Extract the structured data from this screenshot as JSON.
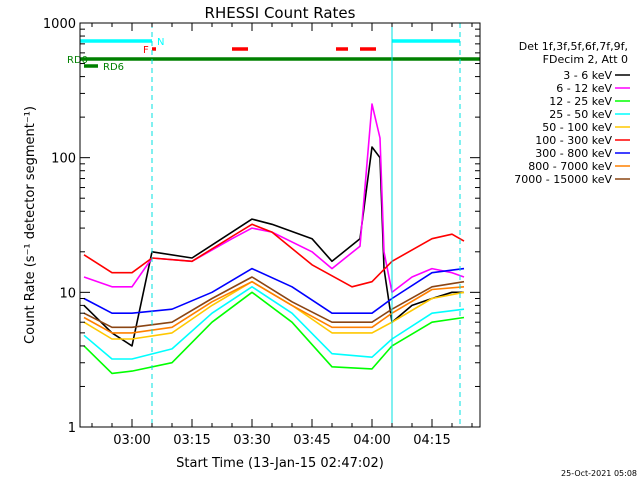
{
  "chart_data": {
    "type": "line",
    "title": "RHESSI Count Rates",
    "xlabel": "Start Time (13-Jan-15 02:47:02)",
    "ylabel": "Count Rate (s⁻¹ detector segment⁻¹)",
    "yscale": "log",
    "ylim": [
      1,
      1000
    ],
    "xlim": [
      "02:47",
      "04:27"
    ],
    "x_ticks": [
      "03:00",
      "03:15",
      "03:30",
      "03:45",
      "04:00",
      "04:15"
    ],
    "y_ticks": [
      "1",
      "10",
      "100",
      "1000"
    ],
    "legend_header": [
      "Det 1f,3f,5f,6f,7f,9f,",
      "FDecim 2, Att 0"
    ],
    "legend_position": "right",
    "series": [
      {
        "name": "3 - 6 keV",
        "color": "#000000",
        "x": [
          "02:48",
          "02:55",
          "03:00",
          "03:05",
          "03:15",
          "03:25",
          "03:30",
          "03:35",
          "03:45",
          "03:50",
          "03:57",
          "04:00",
          "04:02",
          "04:03",
          "04:05",
          "04:10",
          "04:15",
          "04:20",
          "04:23"
        ],
        "y": [
          8,
          5,
          4,
          20,
          18,
          28,
          35,
          32,
          25,
          17,
          25,
          120,
          100,
          15,
          6,
          8,
          9,
          10,
          10
        ]
      },
      {
        "name": "6 - 12 keV",
        "color": "#ff00ff",
        "x": [
          "02:48",
          "02:55",
          "03:00",
          "03:05",
          "03:15",
          "03:25",
          "03:30",
          "03:35",
          "03:45",
          "03:50",
          "03:57",
          "04:00",
          "04:02",
          "04:03",
          "04:05",
          "04:10",
          "04:15",
          "04:20",
          "04:23"
        ],
        "y": [
          13,
          11,
          11,
          18,
          17,
          25,
          30,
          28,
          20,
          15,
          22,
          250,
          140,
          20,
          10,
          13,
          15,
          14,
          13
        ]
      },
      {
        "name": "12 - 25 keV",
        "color": "#00ff00",
        "x": [
          "02:48",
          "02:55",
          "03:00",
          "03:10",
          "03:20",
          "03:30",
          "03:40",
          "03:50",
          "04:00",
          "04:05",
          "04:15",
          "04:23"
        ],
        "y": [
          4,
          2.5,
          2.6,
          3,
          6,
          10,
          6,
          2.8,
          2.7,
          4,
          6,
          6.5
        ]
      },
      {
        "name": "25 - 50 keV",
        "color": "#00ffff",
        "x": [
          "02:48",
          "02:55",
          "03:00",
          "03:10",
          "03:20",
          "03:30",
          "03:40",
          "03:50",
          "04:00",
          "04:05",
          "04:15",
          "04:23"
        ],
        "y": [
          4.8,
          3.2,
          3.2,
          3.8,
          7,
          11,
          7,
          3.5,
          3.3,
          4.5,
          7,
          7.5
        ]
      },
      {
        "name": "50 - 100 keV",
        "color": "#ffc800",
        "x": [
          "02:48",
          "02:55",
          "03:00",
          "03:10",
          "03:20",
          "03:30",
          "03:40",
          "03:50",
          "04:00",
          "04:05",
          "04:15",
          "04:23"
        ],
        "y": [
          6,
          4.5,
          4.5,
          5,
          8,
          12,
          8,
          5,
          5,
          6,
          9,
          10
        ]
      },
      {
        "name": "100 - 300 keV",
        "color": "#ff0000",
        "x": [
          "02:48",
          "02:55",
          "03:00",
          "03:05",
          "03:15",
          "03:25",
          "03:30",
          "03:35",
          "03:45",
          "03:55",
          "04:00",
          "04:05",
          "04:15",
          "04:20",
          "04:23"
        ],
        "y": [
          19,
          14,
          14,
          18,
          17,
          26,
          32,
          28,
          16,
          11,
          12,
          17,
          25,
          27,
          24
        ]
      },
      {
        "name": "300 - 800 keV",
        "color": "#0000ff",
        "x": [
          "02:48",
          "02:55",
          "03:00",
          "03:10",
          "03:20",
          "03:30",
          "03:40",
          "03:50",
          "04:00",
          "04:05",
          "04:15",
          "04:23"
        ],
        "y": [
          9,
          7,
          7,
          7.5,
          10,
          15,
          11,
          7,
          7,
          9,
          14,
          15
        ]
      },
      {
        "name": "800 - 7000 keV",
        "color": "#ff8000",
        "x": [
          "02:48",
          "02:55",
          "03:00",
          "03:10",
          "03:20",
          "03:30",
          "03:40",
          "03:50",
          "04:00",
          "04:05",
          "04:15",
          "04:23"
        ],
        "y": [
          6.5,
          5,
          5,
          5.5,
          8.5,
          12,
          8,
          5.5,
          5.5,
          7,
          10.5,
          11
        ]
      },
      {
        "name": "7000 - 15000 keV",
        "color": "#8b4513",
        "x": [
          "02:48",
          "02:55",
          "03:00",
          "03:10",
          "03:20",
          "03:30",
          "03:40",
          "03:50",
          "04:00",
          "04:05",
          "04:15",
          "04:23"
        ],
        "y": [
          7,
          5.5,
          5.5,
          6,
          9,
          13,
          8.5,
          6,
          6,
          7.5,
          11,
          12
        ]
      }
    ],
    "flag_bars": [
      {
        "label": "N",
        "color": "#00ffff",
        "segments": [
          [
            "02:47",
            "03:05"
          ],
          [
            "04:05",
            "04:22"
          ]
        ]
      },
      {
        "label": "F",
        "color": "#ff0000",
        "segments": [
          [
            "03:05",
            "03:06"
          ],
          [
            "03:25",
            "03:29"
          ],
          [
            "03:51",
            "03:54"
          ],
          [
            "03:57",
            "04:01"
          ]
        ]
      },
      {
        "label": "RD0",
        "color": "#008000",
        "segments": [
          [
            "02:47",
            "03:21"
          ],
          [
            "03:21",
            "03:46"
          ],
          [
            "03:46",
            "04:06"
          ],
          [
            "04:06",
            "04:27"
          ]
        ]
      },
      {
        "label": "RD6",
        "color": "#008000",
        "segments": [
          [
            "02:47",
            "02:51"
          ]
        ]
      }
    ],
    "vertical_markers": [
      {
        "time": "02:47",
        "style": "solid"
      },
      {
        "time": "03:05",
        "style": "dashed"
      },
      {
        "time": "04:05",
        "style": "solid"
      },
      {
        "time": "04:22",
        "style": "dashed"
      }
    ],
    "vertical_marker_color": "#00e0e0"
  },
  "footer_timestamp": "25-Oct-2021 05:08"
}
